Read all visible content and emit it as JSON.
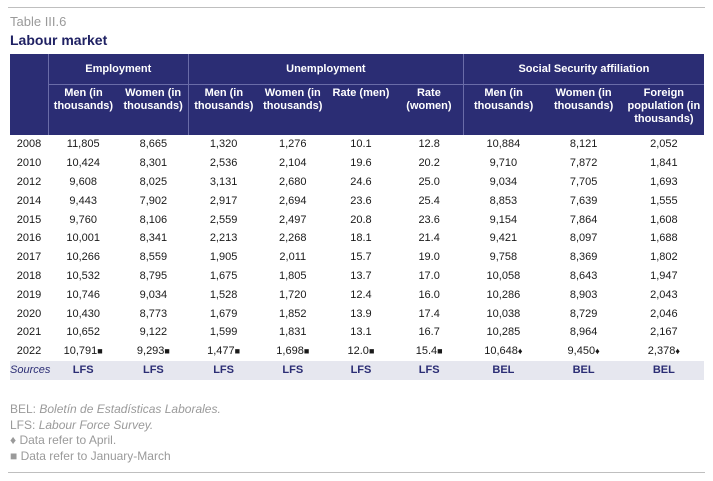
{
  "table_number": "Table III.6",
  "title": "Labour market",
  "groups": {
    "employment": "Employment",
    "unemployment": "Unemployment",
    "social_security": "Social Security affiliation"
  },
  "columns": [
    "Men (in thousands)",
    "Women (in thousands)",
    "Men (in thousands)",
    "Women (in thousands)",
    "Rate (men)",
    "Rate (women)",
    "Men (in thousands)",
    "Women (in thousands)",
    "Foreign population (in thousands)"
  ],
  "rows": [
    {
      "year": "2008",
      "values": [
        "11,805",
        "8,665",
        "1,320",
        "1,276",
        "10.1",
        "12.8",
        "10,884",
        "8,121",
        "2,052"
      ]
    },
    {
      "year": "2010",
      "values": [
        "10,424",
        "8,301",
        "2,536",
        "2,104",
        "19.6",
        "20.2",
        "9,710",
        "7,872",
        "1,841"
      ]
    },
    {
      "year": "2012",
      "values": [
        "9,608",
        "8,025",
        "3,131",
        "2,680",
        "24.6",
        "25.0",
        "9,034",
        "7,705",
        "1,693"
      ]
    },
    {
      "year": "2014",
      "values": [
        "9,443",
        "7,902",
        "2,917",
        "2,694",
        "23.6",
        "25.4",
        "8,853",
        "7,639",
        "1,555"
      ]
    },
    {
      "year": "2015",
      "values": [
        "9,760",
        "8,106",
        "2,559",
        "2,497",
        "20.8",
        "23.6",
        "9,154",
        "7,864",
        "1,608"
      ]
    },
    {
      "year": "2016",
      "values": [
        "10,001",
        "8,341",
        "2,213",
        "2,268",
        "18.1",
        "21.4",
        "9,421",
        "8,097",
        "1,688"
      ]
    },
    {
      "year": "2017",
      "values": [
        "10,266",
        "8,559",
        "1,905",
        "2,011",
        "15.7",
        "19.0",
        "9,758",
        "8,369",
        "1,802"
      ]
    },
    {
      "year": "2018",
      "values": [
        "10,532",
        "8,795",
        "1,675",
        "1,805",
        "13.7",
        "17.0",
        "10,058",
        "8,643",
        "1,947"
      ]
    },
    {
      "year": "2019",
      "values": [
        "10,746",
        "9,034",
        "1,528",
        "1,720",
        "12.4",
        "16.0",
        "10,286",
        "8,903",
        "2,043"
      ]
    },
    {
      "year": "2020",
      "values": [
        "10,430",
        "8,773",
        "1,679",
        "1,852",
        "13.9",
        "17.4",
        "10,038",
        "8,729",
        "2,046"
      ]
    },
    {
      "year": "2021",
      "values": [
        "10,652",
        "9,122",
        "1,599",
        "1,831",
        "13.1",
        "16.7",
        "10,285",
        "8,964",
        "2,167"
      ]
    },
    {
      "year": "2022",
      "values": [
        "10,791",
        "9,293",
        "1,477",
        "1,698",
        "12.0",
        "15.4",
        "10,648",
        "9,450",
        "2,378"
      ],
      "markers": [
        "■",
        "■",
        "■",
        "■",
        "■",
        "■",
        "♦",
        "♦",
        "♦"
      ]
    }
  ],
  "sources_label": "Sources",
  "sources": [
    "LFS",
    "LFS",
    "LFS",
    "LFS",
    "LFS",
    "LFS",
    "BEL",
    "BEL",
    "BEL"
  ],
  "notes": {
    "bel_abbr": "BEL:",
    "bel_full": "Boletín de Estadísticas Laborales.",
    "lfs_abbr": "LFS:",
    "lfs_full": "Labour Force Survey.",
    "april": "♦ Data refer to April.",
    "jan_march": "■ Data refer to January-March"
  }
}
